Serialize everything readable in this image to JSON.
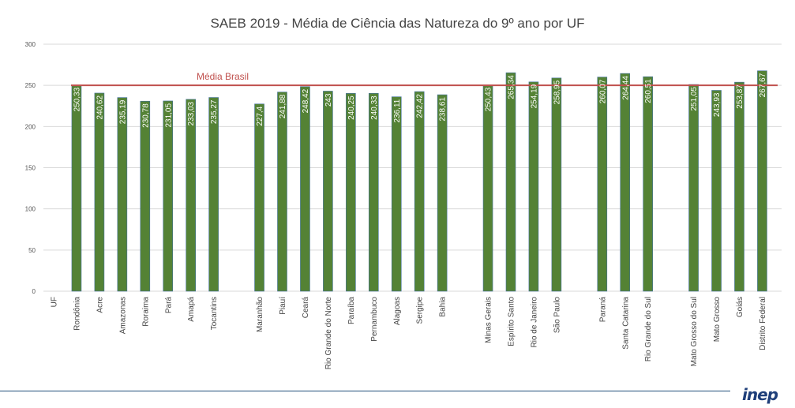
{
  "chart_data": {
    "type": "bar",
    "title": "SAEB 2019 - Média de Ciência das Natureza do 9º ano por UF",
    "xlabel": "",
    "ylabel": "",
    "ylim": [
      0,
      300
    ],
    "yticks": [
      0,
      50,
      100,
      150,
      200,
      250,
      300
    ],
    "grid": true,
    "categories": [
      "UF",
      "Rondônia",
      "Acre",
      "Amazonas",
      "Roraima",
      "Pará",
      "Amapá",
      "Tocantins",
      "",
      "Maranhão",
      "Piauí",
      "Ceará",
      "Rio Grande do Norte",
      "Paraíba",
      "Pernambuco",
      "Alagoas",
      "Sergipe",
      "Bahia",
      "",
      "Minas Gerais",
      "Espírito Santo",
      "Rio de Janeiro",
      "São Paulo",
      "",
      "Paraná",
      "Santa Catarina",
      "Rio Grande do Sul",
      "",
      "Mato Grosso do Sul",
      "Mato Grosso",
      "Goiás",
      "Distrito Federal"
    ],
    "values": [
      null,
      250.33,
      240.62,
      235.19,
      230.78,
      231.05,
      233.03,
      235.27,
      null,
      227.4,
      241.88,
      248.42,
      243,
      240.25,
      240.33,
      236.11,
      242.42,
      238.61,
      null,
      250.43,
      265.34,
      254.19,
      258.95,
      null,
      260.07,
      264.44,
      260.51,
      null,
      251.05,
      243.93,
      253.87,
      267.67
    ],
    "value_labels": [
      null,
      "250,33",
      "240,62",
      "235,19",
      "230,78",
      "231,05",
      "233,03",
      "235,27",
      null,
      "227,4",
      "241,88",
      "248,42",
      "243",
      "240,25",
      "240,33",
      "236,11",
      "242,42",
      "238,61",
      null,
      "250,43",
      "265,34",
      "254,19",
      "258,95",
      null,
      "260,07",
      "264,44",
      "260,51",
      null,
      "251,05",
      "243,93",
      "253,87",
      "267,67"
    ],
    "reference_line": {
      "label": "Média Brasil",
      "value": 250
    },
    "colors": {
      "bar": "#548235",
      "bar_edge": "#41719c",
      "reference": "#c0504d",
      "grid": "#d9d9d9"
    }
  },
  "footer": {
    "logo": "inep"
  }
}
